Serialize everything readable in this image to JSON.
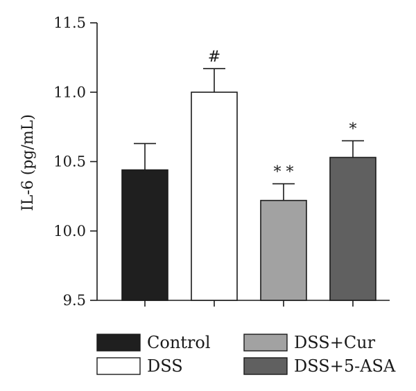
{
  "chart_data": {
    "type": "bar",
    "title": "",
    "xlabel": "",
    "ylabel": "IL-6 (pg/mL)",
    "ylim": [
      9.5,
      11.5
    ],
    "yticks": [
      9.5,
      10.0,
      10.5,
      11.0,
      11.5
    ],
    "ytick_labels": [
      "9.5",
      "10.0",
      "10.5",
      "11.0",
      "11.5"
    ],
    "grid": false,
    "legend_placement": "bottom",
    "categories": [
      "Control",
      "DSS",
      "DSS+Cur",
      "DSS+5-ASA"
    ],
    "values": [
      10.44,
      11.0,
      10.22,
      10.53
    ],
    "errors": [
      0.19,
      0.17,
      0.12,
      0.12
    ],
    "annotations": [
      "",
      "#",
      "* *",
      "*"
    ],
    "colors": [
      "#1f1f1f",
      "#ffffff",
      "#a2a2a2",
      "#606060"
    ]
  }
}
